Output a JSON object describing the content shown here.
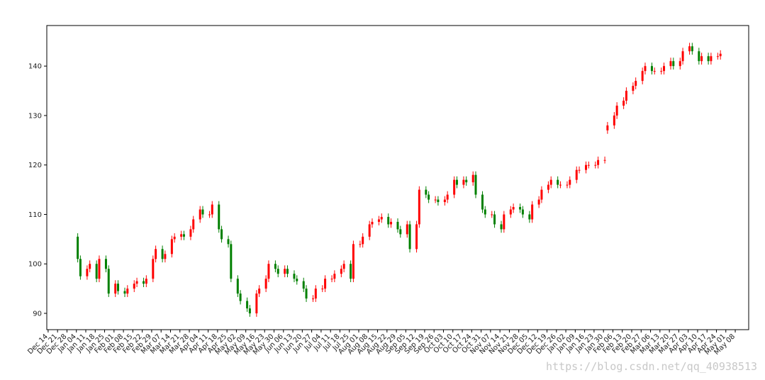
{
  "chart_data": {
    "type": "candlestick",
    "x": [
      22,
      24,
      29,
      31,
      36,
      38,
      43,
      45,
      50,
      52,
      57,
      59,
      64,
      66,
      71,
      73,
      78,
      80,
      85,
      87,
      92,
      94,
      99,
      101,
      106,
      108,
      113,
      115,
      120,
      122,
      127,
      129,
      134,
      136,
      141,
      143,
      148,
      150,
      155,
      157,
      162,
      164,
      169,
      171,
      176,
      178,
      183,
      185,
      190,
      192,
      197,
      199,
      204,
      206,
      211,
      213,
      218,
      220,
      225,
      227,
      232,
      234,
      239,
      241,
      246,
      248,
      253,
      255,
      260,
      262,
      267,
      269,
      274,
      276,
      281,
      283,
      288,
      290,
      295,
      297,
      302,
      304,
      309,
      311,
      316,
      318,
      323,
      325,
      330,
      332,
      337,
      339,
      344,
      346,
      351,
      353,
      358,
      360,
      365,
      367,
      372,
      374,
      379,
      381,
      386,
      388,
      393,
      395,
      400,
      402,
      407,
      409,
      414,
      416,
      421,
      423,
      428,
      430,
      435,
      437,
      442,
      444,
      449,
      451,
      456,
      458,
      463,
      465,
      470,
      472,
      477,
      479,
      484,
      486,
      491,
      493,
      498,
      500
    ],
    "open": [
      105.5,
      101,
      97.5,
      99,
      100,
      97,
      101,
      99,
      94,
      96,
      94.5,
      94,
      95,
      96,
      96.5,
      96,
      97,
      101,
      103,
      101,
      102,
      105,
      105.5,
      106,
      105.5,
      107,
      109,
      111,
      110,
      110,
      112,
      107,
      105,
      104,
      97,
      94,
      92.5,
      91,
      90,
      94,
      95,
      97,
      100,
      99,
      98,
      99,
      98,
      97,
      96.5,
      95,
      93,
      93,
      95,
      95,
      97,
      97,
      98,
      99,
      100,
      97,
      104,
      104,
      105.5,
      108,
      108.5,
      109,
      109.5,
      108,
      108.5,
      107,
      106,
      108,
      103,
      108,
      115,
      114,
      113,
      113,
      112.5,
      113,
      114,
      117,
      116,
      117,
      116.5,
      118,
      114,
      111,
      110,
      110,
      108,
      107,
      110,
      111,
      111.5,
      111,
      110,
      109,
      112,
      113,
      115,
      116,
      117,
      116,
      116,
      116,
      117,
      119,
      119,
      120,
      120,
      120,
      121,
      127,
      128,
      130,
      132,
      133,
      135,
      136,
      137,
      139,
      140,
      139,
      139,
      139,
      140,
      141,
      140,
      141,
      143,
      144,
      143,
      141,
      142,
      141,
      142,
      142
    ],
    "high": [
      106.2,
      101.7,
      99.7,
      100.7,
      100.7,
      101.7,
      101.7,
      99.7,
      96.7,
      96.7,
      95.2,
      95.7,
      96.7,
      97.2,
      97.2,
      97.7,
      101.7,
      103.7,
      103.7,
      102.7,
      105.7,
      106.2,
      106.7,
      106.7,
      107.7,
      109.7,
      111.7,
      111.7,
      110.7,
      112.7,
      112.7,
      107.7,
      105.7,
      104.7,
      97.7,
      94.7,
      93.2,
      91.7,
      94.7,
      95.7,
      97.7,
      100.7,
      100.7,
      99.7,
      99.7,
      99.7,
      98.7,
      97.7,
      97.2,
      95.7,
      93.7,
      95.7,
      95.7,
      97.7,
      97.7,
      98.7,
      99.7,
      100.7,
      100.7,
      104.7,
      104.7,
      106.2,
      108.7,
      109.2,
      109.7,
      110.2,
      110.2,
      109.2,
      109.2,
      107.7,
      108.7,
      108.7,
      108.7,
      115.7,
      115.7,
      114.7,
      113.7,
      113.7,
      113.7,
      114.7,
      117.7,
      117.7,
      117.7,
      117.7,
      118.7,
      118.7,
      114.7,
      111.7,
      110.7,
      110.7,
      108.7,
      110.7,
      111.7,
      112.2,
      112.2,
      111.7,
      110.7,
      112.7,
      113.7,
      115.7,
      116.7,
      117.7,
      117.7,
      116.7,
      116.7,
      117.7,
      119.7,
      119.7,
      120.7,
      120.7,
      120.7,
      121.7,
      121.7,
      128.7,
      130.7,
      132.7,
      133.7,
      135.7,
      136.7,
      137.7,
      139.7,
      140.7,
      140.7,
      139.7,
      139.7,
      140.7,
      141.7,
      141.7,
      141.7,
      143.7,
      144.7,
      144.7,
      143.7,
      142.7,
      142.7,
      142.7,
      142.7,
      143.2
    ],
    "low": [
      100.3,
      96.8,
      96.8,
      98.3,
      96.3,
      96.3,
      98.3,
      93.3,
      93.3,
      93.8,
      93.3,
      93.3,
      94.3,
      95.3,
      95.3,
      95.3,
      96.3,
      100.3,
      100.3,
      100.3,
      101.3,
      104.3,
      104.8,
      104.8,
      104.8,
      106.3,
      108.3,
      109.3,
      109.3,
      109.3,
      106.3,
      104.3,
      103.3,
      96.3,
      93.3,
      91.8,
      90.3,
      89.3,
      89.3,
      93.3,
      94.3,
      96.3,
      98.3,
      97.3,
      97.3,
      97.3,
      96.3,
      95.8,
      94.3,
      92.3,
      92.3,
      92.3,
      94.3,
      94.3,
      96.3,
      96.3,
      97.3,
      98.3,
      96.3,
      96.3,
      103.3,
      103.3,
      104.8,
      107.3,
      107.8,
      108.3,
      107.3,
      107.3,
      106.3,
      105.3,
      105.3,
      102.3,
      102.3,
      107.3,
      113.3,
      112.3,
      112.3,
      111.8,
      111.8,
      112.3,
      113.3,
      115.3,
      115.3,
      115.8,
      115.8,
      113.3,
      110.3,
      109.3,
      109.3,
      107.3,
      106.3,
      106.3,
      109.3,
      110.3,
      110.3,
      109.3,
      108.3,
      108.3,
      111.3,
      112.3,
      114.3,
      115.3,
      115.3,
      115.3,
      115.3,
      115.3,
      116.3,
      118.3,
      118.3,
      119.3,
      119.3,
      119.3,
      120.3,
      126.3,
      127.3,
      129.3,
      131.3,
      132.3,
      134.3,
      135.3,
      136.3,
      138.3,
      138.3,
      138.3,
      138.3,
      138.3,
      139.3,
      139.3,
      139.3,
      140.3,
      142.3,
      142.3,
      140.3,
      140.3,
      140.3,
      140.3,
      141.3,
      141.3
    ],
    "close": [
      101,
      97.5,
      99,
      100,
      97,
      101,
      99,
      94,
      96,
      94.5,
      94,
      95,
      96,
      96.5,
      96,
      97,
      101,
      103,
      101,
      102,
      105,
      105.5,
      106,
      105.5,
      107,
      109,
      111,
      110,
      110,
      112,
      107,
      105,
      104,
      97,
      94,
      92.5,
      91,
      90,
      94,
      95,
      97,
      100,
      99,
      98,
      99,
      98,
      97,
      96.5,
      95,
      93,
      93,
      95,
      95,
      97,
      97,
      98,
      99,
      100,
      97,
      104,
      104,
      105.5,
      108,
      108.5,
      109,
      109.5,
      108,
      108.5,
      107,
      106,
      108,
      103,
      108,
      115,
      114,
      113,
      113,
      112.5,
      113,
      114,
      117,
      116,
      117,
      116.5,
      118,
      114,
      111,
      110,
      110,
      108,
      107,
      110,
      111,
      111.5,
      111,
      110,
      109,
      112,
      113,
      115,
      116,
      117,
      116,
      116,
      116,
      117,
      119,
      119,
      120,
      120,
      120,
      121,
      121,
      128,
      130,
      132,
      133,
      135,
      136,
      137,
      139,
      140,
      139,
      139,
      139,
      140,
      141,
      140,
      141,
      143,
      144,
      143,
      141,
      142,
      141,
      142,
      142,
      142.5
    ],
    "up_color": "#ff0000",
    "down_color": "#008000",
    "xlim": [
      -1,
      521
    ],
    "ylim": [
      86.7,
      148.2
    ],
    "yticks": [
      90,
      100,
      110,
      120,
      130,
      140
    ],
    "xticks": [
      {
        "value": 0,
        "label": "Dec 14"
      },
      {
        "value": 7,
        "label": "Dec 21"
      },
      {
        "value": 14,
        "label": "Dec 28"
      },
      {
        "value": 21,
        "label": "Jan 04"
      },
      {
        "value": 28,
        "label": "Jan 11"
      },
      {
        "value": 35,
        "label": "Jan 18"
      },
      {
        "value": 42,
        "label": "Jan 25"
      },
      {
        "value": 49,
        "label": "Feb 01"
      },
      {
        "value": 56,
        "label": "Feb 08"
      },
      {
        "value": 63,
        "label": "Feb 15"
      },
      {
        "value": 70,
        "label": "Feb 22"
      },
      {
        "value": 77,
        "label": "Feb 29"
      },
      {
        "value": 84,
        "label": "Mar 07"
      },
      {
        "value": 91,
        "label": "Mar 14"
      },
      {
        "value": 98,
        "label": "Mar 21"
      },
      {
        "value": 105,
        "label": "Mar 28"
      },
      {
        "value": 112,
        "label": "Apr 04"
      },
      {
        "value": 119,
        "label": "Apr 11"
      },
      {
        "value": 126,
        "label": "Apr 18"
      },
      {
        "value": 133,
        "label": "Apr 25"
      },
      {
        "value": 140,
        "label": "May 02"
      },
      {
        "value": 147,
        "label": "May 09"
      },
      {
        "value": 154,
        "label": "May 16"
      },
      {
        "value": 161,
        "label": "May 23"
      },
      {
        "value": 168,
        "label": "May 30"
      },
      {
        "value": 175,
        "label": "Jun 06"
      },
      {
        "value": 182,
        "label": "Jun 13"
      },
      {
        "value": 189,
        "label": "Jun 20"
      },
      {
        "value": 196,
        "label": "Jun 27"
      },
      {
        "value": 203,
        "label": "Jul 04"
      },
      {
        "value": 210,
        "label": "Jul 11"
      },
      {
        "value": 217,
        "label": "Jul 18"
      },
      {
        "value": 224,
        "label": "Jul 25"
      },
      {
        "value": 231,
        "label": "Aug 01"
      },
      {
        "value": 238,
        "label": "Aug 08"
      },
      {
        "value": 245,
        "label": "Aug 15"
      },
      {
        "value": 252,
        "label": "Aug 22"
      },
      {
        "value": 259,
        "label": "Aug 29"
      },
      {
        "value": 266,
        "label": "Sep 05"
      },
      {
        "value": 273,
        "label": "Sep 12"
      },
      {
        "value": 280,
        "label": "Sep 19"
      },
      {
        "value": 287,
        "label": "Sep 26"
      },
      {
        "value": 294,
        "label": "Oct 03"
      },
      {
        "value": 301,
        "label": "Oct 10"
      },
      {
        "value": 308,
        "label": "Oct 17"
      },
      {
        "value": 315,
        "label": "Oct 24"
      },
      {
        "value": 322,
        "label": "Oct 31"
      },
      {
        "value": 329,
        "label": "Nov 07"
      },
      {
        "value": 336,
        "label": "Nov 14"
      },
      {
        "value": 343,
        "label": "Nov 21"
      },
      {
        "value": 350,
        "label": "Nov 28"
      },
      {
        "value": 357,
        "label": "Dec 05"
      },
      {
        "value": 364,
        "label": "Dec 12"
      },
      {
        "value": 371,
        "label": "Dec 19"
      },
      {
        "value": 378,
        "label": "Dec 26"
      },
      {
        "value": 385,
        "label": "Jan 02"
      },
      {
        "value": 392,
        "label": "Jan 09"
      },
      {
        "value": 399,
        "label": "Jan 16"
      },
      {
        "value": 406,
        "label": "Jan 23"
      },
      {
        "value": 413,
        "label": "Jan 30"
      },
      {
        "value": 420,
        "label": "Feb 06"
      },
      {
        "value": 427,
        "label": "Feb 13"
      },
      {
        "value": 434,
        "label": "Feb 20"
      },
      {
        "value": 441,
        "label": "Feb 27"
      },
      {
        "value": 448,
        "label": "Mar 06"
      },
      {
        "value": 455,
        "label": "Mar 13"
      },
      {
        "value": 462,
        "label": "Mar 20"
      },
      {
        "value": 469,
        "label": "Mar 27"
      },
      {
        "value": 476,
        "label": "Apr 03"
      },
      {
        "value": 483,
        "label": "Apr 10"
      },
      {
        "value": 490,
        "label": "Apr 17"
      },
      {
        "value": 497,
        "label": "Apr 24"
      },
      {
        "value": 504,
        "label": "May 01"
      },
      {
        "value": 511,
        "label": "May 08"
      }
    ],
    "watermark": "https://blog.csdn.net/qq_40938513"
  }
}
